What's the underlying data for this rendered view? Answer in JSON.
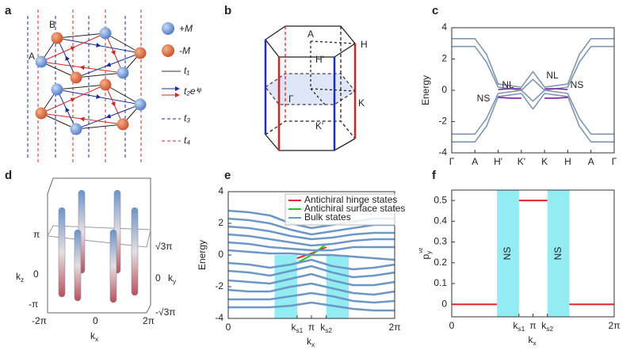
{
  "panel_labels": [
    "a",
    "b",
    "c",
    "d",
    "e",
    "f"
  ],
  "lattice": {
    "site_labels": [
      "A",
      "B"
    ],
    "legend": [
      "+M",
      "-M",
      "t₁",
      "t₂eⁱᵠ",
      "t₃",
      "t₄"
    ]
  },
  "prism": {
    "labels": [
      "A",
      "H",
      "H'",
      "Γ",
      "K",
      "K'"
    ]
  },
  "hinge_plot": {
    "zticks": [
      "π",
      "0",
      "-π"
    ],
    "zlabel": "kz",
    "xticks": [
      "-2π",
      "0",
      "2π"
    ],
    "xlabel": "kx",
    "yticks": [
      "√3π",
      "0",
      "-√3π"
    ],
    "ylabel": "ky"
  },
  "chart_data": [
    {
      "type": "line",
      "ylabel": "Energy",
      "xlim": [
        0,
        7
      ],
      "xticks": [
        {
          "value": 0,
          "label": "Γ"
        },
        {
          "value": 1,
          "label": "A"
        },
        {
          "value": 2,
          "label": "H'"
        },
        {
          "value": 3,
          "label": "K'"
        },
        {
          "value": 4,
          "label": "K"
        },
        {
          "value": 5,
          "label": "H"
        },
        {
          "value": 6,
          "label": "A"
        },
        {
          "value": 7,
          "label": "Γ"
        }
      ],
      "ylim": [
        -4,
        4
      ],
      "yticks": [
        -4,
        -2,
        0,
        2,
        4
      ],
      "annotations": [
        "NS",
        "NL",
        "NL",
        "NS"
      ],
      "x": [
        0,
        0.5,
        1,
        1.5,
        2,
        2.5,
        3,
        3.5,
        4,
        4.5,
        5,
        5.5,
        6,
        6.5,
        7
      ],
      "series": [
        {
          "color": "#8096b0",
          "values": [
            3.3,
            3.3,
            3.3,
            2.3,
            0.4,
            0.3,
            0.2,
            1.2,
            0.2,
            0.3,
            0.4,
            2.3,
            3.3,
            3.3,
            3.3
          ]
        },
        {
          "color": "#8096b0",
          "values": [
            2.8,
            2.8,
            2.8,
            1.8,
            0.2,
            0.1,
            0.0,
            0.7,
            0.0,
            0.1,
            0.2,
            1.8,
            2.8,
            2.8,
            2.8
          ]
        },
        {
          "color": "#8096b0",
          "values": [
            -2.8,
            -2.8,
            -2.8,
            -1.8,
            -0.2,
            -0.1,
            0.0,
            -0.7,
            0.0,
            -0.1,
            -0.2,
            -1.8,
            -2.8,
            -2.8,
            -2.8
          ]
        },
        {
          "color": "#8096b0",
          "values": [
            -3.3,
            -3.3,
            -3.3,
            -2.3,
            -0.4,
            -0.3,
            -0.2,
            -1.2,
            -0.2,
            -0.3,
            -0.4,
            -2.3,
            -3.3,
            -3.3,
            -3.3
          ]
        },
        {
          "color": "#7b1fa2",
          "values": [
            null,
            null,
            null,
            null,
            0.05,
            0.1,
            0.1,
            null,
            0.1,
            0.1,
            0.05,
            null,
            null,
            null,
            null
          ]
        },
        {
          "color": "#7b1fa2",
          "values": [
            null,
            null,
            null,
            null,
            -0.45,
            -0.5,
            -0.5,
            null,
            -0.5,
            -0.5,
            -0.45,
            null,
            null,
            null,
            null
          ]
        }
      ]
    },
    {
      "type": "line",
      "ylabel": "Energy",
      "xlabel": "kx",
      "xlim": [
        0,
        6.283
      ],
      "xticks": [
        {
          "value": 0,
          "label": "0"
        },
        {
          "value": 2.6,
          "label": "ks1"
        },
        {
          "value": 3.1416,
          "label": "π"
        },
        {
          "value": 3.7,
          "label": "ks2"
        },
        {
          "value": 6.283,
          "label": "2π"
        }
      ],
      "ylim": [
        -4,
        4
      ],
      "yticks": [
        -4,
        -2,
        0,
        2,
        4
      ],
      "shaded_regions": [
        [
          1.75,
          2.6
        ],
        [
          3.7,
          4.55
        ]
      ],
      "shade_color": "#7fe9ef",
      "legend": "upper right",
      "x": [
        0,
        0.785,
        1.571,
        2.356,
        3.142,
        3.927,
        4.712,
        5.498,
        6.283
      ],
      "series": [
        {
          "name": "Antichiral hinge states",
          "color": "#e8262a",
          "x": [
            2.6,
            3.142,
            3.7
          ],
          "values": [
            -0.2,
            0.1,
            0.5
          ]
        },
        {
          "name": "Antichiral surface states",
          "color": "#22c322",
          "x": [
            2.6,
            3.142,
            3.7
          ],
          "values": [
            -0.5,
            0.0,
            0.7
          ]
        },
        {
          "name": "Bulk states",
          "color": "#6d98c6",
          "bands": [
            [
              2.8,
              2.7,
              2.5,
              2.0,
              1.7,
              1.9,
              2.1,
              2.3,
              2.3
            ],
            [
              2.3,
              2.2,
              2.0,
              1.6,
              1.3,
              1.5,
              1.7,
              1.9,
              1.9
            ],
            [
              1.8,
              1.7,
              1.5,
              1.2,
              1.0,
              1.1,
              1.3,
              1.4,
              1.4
            ],
            [
              1.3,
              1.2,
              1.0,
              0.8,
              0.6,
              0.7,
              0.9,
              1.0,
              1.0
            ],
            [
              0.8,
              0.7,
              0.5,
              0.4,
              0.3,
              0.3,
              0.5,
              0.5,
              0.5
            ],
            [
              0.3,
              0.2,
              0.1,
              0.1,
              0.0,
              0.0,
              -0.1,
              -0.2,
              -0.3
            ],
            [
              -0.5,
              -0.6,
              -0.8,
              -0.6,
              -0.3,
              -0.7,
              -0.9,
              -0.8,
              -0.6
            ],
            [
              -1.0,
              -1.1,
              -1.3,
              -1.0,
              -0.7,
              -1.1,
              -1.4,
              -1.3,
              -1.1
            ],
            [
              -1.6,
              -1.7,
              -1.8,
              -1.5,
              -1.2,
              -1.6,
              -1.9,
              -1.9,
              -1.7
            ],
            [
              -2.2,
              -2.3,
              -2.3,
              -2.0,
              -1.8,
              -2.1,
              -2.4,
              -2.5,
              -2.3
            ],
            [
              -2.8,
              -2.8,
              -2.8,
              -2.6,
              -2.4,
              -2.6,
              -2.9,
              -3.0,
              -2.9
            ],
            [
              -3.3,
              -3.3,
              -3.3,
              -3.2,
              -3.0,
              -3.2,
              -3.4,
              -3.5,
              -3.5
            ]
          ]
        }
      ]
    },
    {
      "type": "line",
      "ylabel": "pyνz",
      "xlabel": "kx",
      "xlim": [
        0,
        6.283
      ],
      "xticks": [
        {
          "value": 0,
          "label": "0"
        },
        {
          "value": 2.6,
          "label": "ks1"
        },
        {
          "value": 3.1416,
          "label": "π"
        },
        {
          "value": 3.7,
          "label": "ks2"
        },
        {
          "value": 6.283,
          "label": "2π"
        }
      ],
      "ylim": [
        -0.06,
        0.55
      ],
      "yticks": [
        0,
        0.1,
        0.2,
        0.3,
        0.4,
        0.5
      ],
      "shaded_regions": [
        [
          1.75,
          2.6
        ],
        [
          3.7,
          4.55
        ]
      ],
      "shade_color": "#7fe9ef",
      "region_labels": [
        "NS",
        "NS"
      ],
      "x": [
        0,
        1.75,
        null,
        2.6,
        3.7,
        null,
        4.55,
        6.283
      ],
      "series": [
        {
          "color": "#e8262a",
          "values": [
            0,
            0,
            null,
            0.5,
            0.5,
            null,
            0,
            0
          ]
        }
      ]
    }
  ]
}
